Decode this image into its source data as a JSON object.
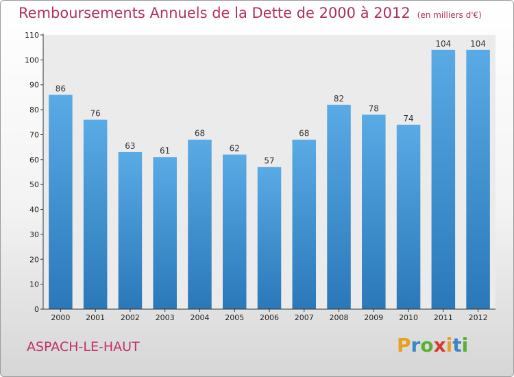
{
  "title": "Remboursements Annuels de la Dette de 2000 à 2012",
  "title_unit": "(en milliers d'€)",
  "commune": "ASPACH-LE-HAUT",
  "logo": {
    "letters": [
      "P",
      "r",
      "o",
      "x",
      "i",
      "t",
      "i"
    ],
    "colors": [
      "#e8a020",
      "#3a86c8",
      "#5ab030",
      "#d43a30",
      "#e8a020",
      "#3a86c8",
      "#5ab030"
    ]
  },
  "chart_data": {
    "type": "bar",
    "categories": [
      "2000",
      "2001",
      "2002",
      "2003",
      "2004",
      "2005",
      "2006",
      "2007",
      "2008",
      "2009",
      "2010",
      "2011",
      "2012"
    ],
    "values": [
      86,
      76,
      63,
      61,
      68,
      62,
      57,
      68,
      82,
      78,
      74,
      104,
      104
    ],
    "data_labels": [
      "86",
      "76",
      "63",
      "61",
      "68",
      "62",
      "57",
      "68",
      "82",
      "78",
      "74",
      "104",
      "104"
    ],
    "yticks": [
      0,
      10,
      20,
      30,
      40,
      50,
      60,
      70,
      80,
      90,
      100,
      110
    ],
    "ylim": [
      0,
      110
    ],
    "grid": false,
    "bar_color_top": "#5aaae6",
    "bar_color_bottom": "#2a78b8"
  }
}
